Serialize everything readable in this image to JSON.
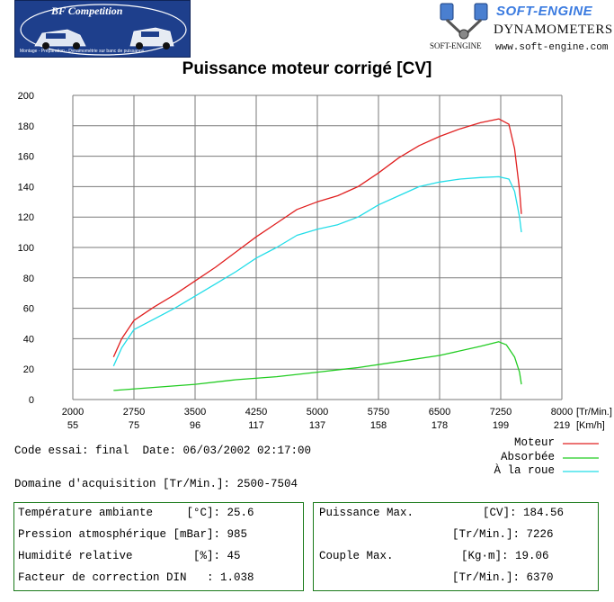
{
  "header": {
    "left_logo_title": "BF Competition",
    "left_logo_subtitle": "Montage - Préparation - Dynamométrie sur banc de puissance",
    "brand_name": "SOFT-ENGINE",
    "brand_product": "DYNAMOMETERS",
    "brand_small": "SOFT-ENGINE",
    "brand_url": "www.soft-engine.com"
  },
  "colors": {
    "moteur": "#e02020",
    "absorbee": "#22cc22",
    "roue": "#22dde8",
    "grid": "#7a7a7a",
    "box_border": "#1a7a1a"
  },
  "chart_data": {
    "type": "line",
    "title": "Puissance moteur corrigé [CV]",
    "x_axis_rpm": {
      "ticks": [
        "2000",
        "2750",
        "3500",
        "4250",
        "5000",
        "5750",
        "6500",
        "7250",
        "8000"
      ],
      "unit": "[Tr/Min.]",
      "range": [
        2000,
        8000
      ]
    },
    "x_axis_speed": {
      "ticks": [
        "55",
        "75",
        "96",
        "117",
        "137",
        "158",
        "178",
        "199",
        "219"
      ],
      "unit": "[Km/h]"
    },
    "y_axis": {
      "ticks": [
        "0",
        "20",
        "40",
        "60",
        "80",
        "100",
        "120",
        "140",
        "160",
        "180",
        "200"
      ],
      "range": [
        0,
        200
      ]
    },
    "grid": true,
    "legend_position": "below-right",
    "series": [
      {
        "name": "Moteur",
        "color": "#e02020",
        "points": [
          [
            2500,
            28
          ],
          [
            2600,
            40
          ],
          [
            2750,
            52
          ],
          [
            3000,
            61
          ],
          [
            3250,
            69
          ],
          [
            3500,
            78
          ],
          [
            3750,
            87
          ],
          [
            4000,
            97
          ],
          [
            4250,
            107
          ],
          [
            4500,
            116
          ],
          [
            4750,
            125
          ],
          [
            5000,
            130
          ],
          [
            5250,
            134
          ],
          [
            5500,
            140
          ],
          [
            5750,
            149
          ],
          [
            6000,
            159
          ],
          [
            6250,
            167
          ],
          [
            6500,
            173
          ],
          [
            6750,
            178
          ],
          [
            7000,
            182
          ],
          [
            7226,
            184.56
          ],
          [
            7350,
            181
          ],
          [
            7420,
            165
          ],
          [
            7480,
            138
          ],
          [
            7504,
            122
          ]
        ]
      },
      {
        "name": "Absorbée",
        "color": "#22cc22",
        "points": [
          [
            2500,
            6
          ],
          [
            3000,
            8
          ],
          [
            3500,
            10
          ],
          [
            4000,
            13
          ],
          [
            4500,
            15
          ],
          [
            5000,
            18
          ],
          [
            5500,
            21
          ],
          [
            6000,
            25
          ],
          [
            6500,
            29
          ],
          [
            7000,
            35
          ],
          [
            7226,
            38
          ],
          [
            7320,
            36
          ],
          [
            7420,
            28
          ],
          [
            7480,
            18
          ],
          [
            7504,
            10
          ]
        ]
      },
      {
        "name": "À la roue",
        "color": "#22dde8",
        "points": [
          [
            2500,
            22
          ],
          [
            2600,
            34
          ],
          [
            2750,
            46
          ],
          [
            3000,
            53
          ],
          [
            3250,
            60
          ],
          [
            3500,
            68
          ],
          [
            3750,
            76
          ],
          [
            4000,
            84
          ],
          [
            4250,
            93
          ],
          [
            4500,
            100
          ],
          [
            4750,
            108
          ],
          [
            5000,
            112
          ],
          [
            5250,
            115
          ],
          [
            5500,
            120
          ],
          [
            5750,
            128
          ],
          [
            6000,
            134
          ],
          [
            6250,
            140
          ],
          [
            6500,
            143
          ],
          [
            6750,
            145
          ],
          [
            7000,
            146
          ],
          [
            7226,
            146.5
          ],
          [
            7350,
            145
          ],
          [
            7420,
            137
          ],
          [
            7480,
            120
          ],
          [
            7504,
            110
          ]
        ]
      }
    ]
  },
  "info": {
    "code_essai": "Code essai: final  Date: 06/03/2002 02:17:00",
    "domaine": "Domaine d'acquisition [Tr/Min.]: 2500-7504",
    "legend": [
      "Moteur",
      "Absorbée",
      "À la roue"
    ]
  },
  "conditions": {
    "rows": [
      "Température ambiante     [°C]: 25.6",
      "Pression atmosphérique [mBar]: 985",
      "Humidité relative         [%]: 45",
      "Facteur de correction DIN   : 1.038"
    ]
  },
  "results": {
    "puissance_label": "Puissance Max.",
    "puissance_value": "[CV]: 184.56",
    "puissance_rpm": "[Tr/Min.]: 7226",
    "couple_label": "Couple Max.",
    "couple_value": "[Kg·m]: 19.06",
    "couple_rpm": "[Tr/Min.]: 6370"
  }
}
